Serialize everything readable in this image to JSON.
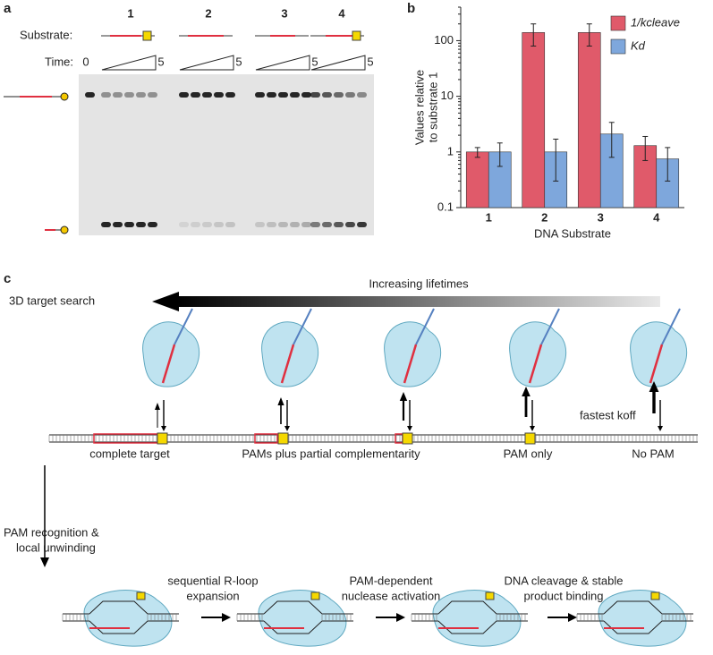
{
  "panel_labels": {
    "a": "a",
    "b": "b",
    "c": "c"
  },
  "gel": {
    "lanes": [
      "1",
      "2",
      "3",
      "4"
    ],
    "substrate_label": "Substrate:",
    "time_label": "Time:",
    "time_start": "0",
    "time_end": "5"
  },
  "chart_data": {
    "type": "bar",
    "categories": [
      "1",
      "2",
      "3",
      "4"
    ],
    "series": [
      {
        "name": "1/kcleave",
        "color": "#e05a6a",
        "values": [
          1,
          140,
          140,
          1.3
        ],
        "errors": [
          0.2,
          60,
          60,
          0.6
        ]
      },
      {
        "name": "Kd",
        "color": "#7ea7dc",
        "values": [
          1,
          1.0,
          2.1,
          0.75
        ],
        "errors": [
          0.45,
          0.7,
          1.3,
          0.45
        ]
      }
    ],
    "ylabel": [
      "Values relative",
      "to substrate 1"
    ],
    "xlabel": "DNA Substrate",
    "ylim": [
      0.1,
      400
    ],
    "yticks": [
      0.1,
      1,
      10,
      100
    ],
    "yscale": "log",
    "legend": "top-right"
  },
  "search": {
    "left_label": "3D target search",
    "arrow_label": "Increasing lifetimes",
    "sites": [
      "complete target",
      "PAMs plus partial complementarity",
      "PAM only",
      "No PAM"
    ],
    "koff_label": "fastest koff"
  },
  "pathway": {
    "first_step": [
      "PAM recognition &",
      "local unwinding"
    ],
    "steps": [
      [
        "sequential R-loop",
        "expansion"
      ],
      [
        "PAM-dependent",
        "nuclease activation"
      ],
      [
        "DNA cleavage & stable",
        "product binding"
      ]
    ]
  }
}
